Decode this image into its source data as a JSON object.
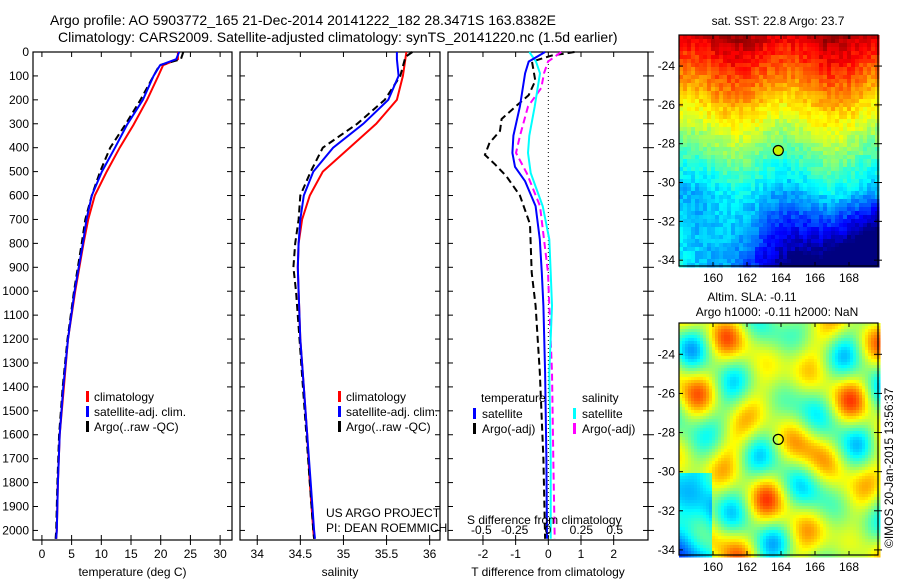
{
  "title_line1": "Argo profile: AO 5903772_165 21-Dec-2014 20141222_182 28.3471S 163.8382E",
  "title_line2": "Climatology: CARS2009. Satellite-adjusted climatology: synTS_20141220.nc (1.5d earlier)",
  "credit": "©IMOS 20-Jan-2015 13:56:37",
  "project_line1": "US ARGO PROJECT",
  "project_line2": "PI: DEAN ROEMMICH",
  "colors": {
    "climatology": "#ff0000",
    "satellite": "#0000ff",
    "argo": "#000000",
    "sal_satellite": "#00ffff",
    "sal_argo": "#ff00ff"
  },
  "chart_data": [
    {
      "type": "line",
      "xlabel": "temperature (deg C)",
      "ylabel": "",
      "xlim": [
        -1.5,
        32
      ],
      "ylim": [
        0,
        2040
      ],
      "xticks": [
        0,
        5,
        10,
        15,
        20,
        25,
        30
      ],
      "yticks": [
        0,
        100,
        200,
        300,
        400,
        500,
        600,
        700,
        800,
        900,
        1000,
        1100,
        1200,
        1300,
        1400,
        1500,
        1600,
        1700,
        1800,
        1900,
        2000
      ],
      "y_reversed": true,
      "legend": [
        "climatology",
        "satellite-adj. clim.",
        "Argo(..raw -QC)"
      ],
      "legend_placement": "lower-middle",
      "series": [
        {
          "name": "climatology",
          "depth": [
            0,
            30,
            55,
            100,
            200,
            305,
            400,
            500,
            600,
            700,
            800,
            1000,
            1200,
            1400,
            1600,
            1800,
            2000,
            2035
          ],
          "values": [
            22.9,
            22.9,
            20.4,
            19.6,
            17.7,
            15.4,
            13.1,
            10.9,
            8.9,
            7.8,
            7.0,
            5.6,
            4.4,
            3.7,
            3.0,
            2.7,
            2.5,
            2.4
          ]
        },
        {
          "name": "satellite-adj. clim.",
          "depth": [
            0,
            30,
            55,
            100,
            200,
            305,
            400,
            500,
            600,
            700,
            800,
            1000,
            1200,
            1400,
            1600,
            1800,
            2000,
            2035
          ],
          "values": [
            23.1,
            22.6,
            19.9,
            18.8,
            17.0,
            14.3,
            12.3,
            10.1,
            8.4,
            7.5,
            6.9,
            5.5,
            4.4,
            3.6,
            3.0,
            2.7,
            2.5,
            2.4
          ]
        },
        {
          "name": "Argo(..raw -QC)",
          "depth": [
            0,
            30,
            55,
            100,
            200,
            305,
            400,
            500,
            600,
            700,
            800,
            1000,
            1200,
            1400,
            1600,
            1800,
            2000,
            2035
          ],
          "values": [
            23.8,
            23.4,
            19.8,
            18.8,
            16.6,
            14.0,
            11.5,
            9.8,
            8.4,
            7.3,
            6.7,
            5.4,
            4.3,
            3.5,
            2.9,
            2.6,
            2.4,
            2.3
          ]
        }
      ]
    },
    {
      "type": "line",
      "xlabel": "salinity",
      "xlim": [
        33.8,
        36.12
      ],
      "ylim": [
        0,
        2040
      ],
      "xticks": [
        34,
        34.5,
        35,
        35.5,
        36
      ],
      "y_reversed": true,
      "legend": [
        "climatology",
        "satellite-adj. clim.",
        "Argo(..raw -QC)"
      ],
      "legend_placement": "lower-middle",
      "series": [
        {
          "name": "climatology",
          "depth": [
            0,
            100,
            200,
            300,
            400,
            500,
            600,
            700,
            800,
            900,
            1000,
            1200,
            1400,
            1600,
            1800,
            2000,
            2035
          ],
          "values": [
            35.73,
            35.69,
            35.62,
            35.38,
            35.07,
            34.76,
            34.61,
            34.52,
            34.48,
            34.47,
            34.48,
            34.5,
            34.54,
            34.58,
            34.61,
            34.65,
            34.66
          ]
        },
        {
          "name": "satellite-adj. clim.",
          "depth": [
            0,
            30,
            100,
            200,
            300,
            400,
            500,
            600,
            700,
            800,
            900,
            1000,
            1200,
            1400,
            1600,
            1800,
            2000,
            2035
          ],
          "values": [
            35.62,
            35.62,
            35.64,
            35.52,
            35.23,
            34.88,
            34.65,
            34.54,
            34.5,
            34.48,
            34.47,
            34.48,
            34.5,
            34.54,
            34.58,
            34.62,
            34.66,
            34.67
          ]
        },
        {
          "name": "Argo(..raw -QC)",
          "depth": [
            0,
            20,
            100,
            200,
            300,
            400,
            500,
            600,
            700,
            800,
            900,
            1000,
            1200,
            1400,
            1600,
            1800,
            2000,
            2035
          ],
          "values": [
            35.8,
            35.72,
            35.66,
            35.48,
            35.16,
            34.76,
            34.62,
            34.5,
            34.48,
            34.44,
            34.42,
            34.45,
            34.49,
            34.53,
            34.57,
            34.61,
            34.65,
            34.66
          ]
        }
      ]
    },
    {
      "type": "line",
      "xlabel": "T difference from climatology",
      "x2label": "S difference from climatology",
      "xlim": [
        -3.07,
        3.05
      ],
      "x2lim": [
        -0.75,
        0.75
      ],
      "ylim": [
        0,
        2040
      ],
      "xticks": [
        -2,
        -1,
        0,
        1,
        2
      ],
      "x2ticks": [
        -0.5,
        -0.25,
        0,
        0.25,
        0.5
      ],
      "x2ticklabels": [
        "-0.5",
        "-0.25",
        "0",
        "0.25",
        "0.5"
      ],
      "y_reversed": true,
      "legend_headers": [
        "temperature",
        "salinity"
      ],
      "legend": [
        "satellite",
        "Argo(-adj)",
        "satellite",
        "Argo(-adj)"
      ],
      "series": [
        {
          "name": "temperature satellite",
          "axis": "T",
          "depth": [
            0,
            40,
            89,
            228,
            350,
            422,
            480,
            540,
            644,
            783,
            922,
            1061,
            1339,
            1700,
            2035
          ],
          "values": [
            -0.1,
            -0.6,
            -0.71,
            -0.87,
            -1.07,
            -1.1,
            -1.02,
            -0.71,
            -0.39,
            -0.26,
            -0.2,
            -0.15,
            -0.1,
            -0.06,
            -0.04
          ]
        },
        {
          "name": "temperature Argo(-adj)",
          "axis": "T",
          "depth": [
            0,
            15,
            40,
            120,
            180,
            228,
            280,
            330,
            380,
            430,
            470,
            520,
            600,
            720,
            922,
            1061,
            1339,
            1700,
            2035
          ],
          "values": [
            0.8,
            0.1,
            -0.5,
            -0.4,
            -0.6,
            -1.0,
            -1.43,
            -1.48,
            -1.8,
            -1.94,
            -1.63,
            -1.28,
            -0.87,
            -0.56,
            -0.51,
            -0.39,
            -0.26,
            -0.15,
            -0.1
          ]
        },
        {
          "name": "salinity satellite",
          "axis": "S",
          "depth": [
            0,
            40,
            89,
            228,
            350,
            422,
            506,
            644,
            783,
            922,
            1061,
            1339,
            1700,
            2035
          ],
          "values": [
            -0.14,
            -0.09,
            -0.06,
            -0.1,
            -0.14,
            -0.15,
            -0.13,
            -0.04,
            0.01,
            0.02,
            0.03,
            0.01,
            0.02,
            0.02
          ]
        },
        {
          "name": "salinity Argo(-adj)",
          "axis": "S",
          "depth": [
            0,
            40,
            89,
            150,
            228,
            350,
            422,
            506,
            644,
            783,
            922,
            1061,
            1339,
            1700,
            2035
          ],
          "values": [
            0.1,
            0.0,
            -0.03,
            -0.05,
            -0.15,
            -0.21,
            -0.24,
            -0.16,
            -0.06,
            -0.03,
            0.0,
            0.01,
            0.03,
            0.04,
            0.05
          ]
        }
      ]
    }
  ],
  "maps": [
    {
      "title": "sat. SST: 22.8 Argo: 23.7",
      "lon_ticks": [
        160,
        162,
        164,
        166,
        168
      ],
      "lat_ticks": [
        -24,
        -26,
        -28,
        -30,
        -32,
        -34
      ],
      "marker_lon": 163.84,
      "marker_lat": -28.35
    },
    {
      "title_line1": "Altim. SLA: -0.11",
      "title_line2": "Argo h1000: -0.11 h2000: NaN",
      "lon_ticks": [
        160,
        162,
        164,
        166,
        168
      ],
      "lat_ticks": [
        -24,
        -26,
        -28,
        -30,
        -32,
        -34
      ],
      "marker_lon": 163.84,
      "marker_lat": -28.35
    }
  ]
}
